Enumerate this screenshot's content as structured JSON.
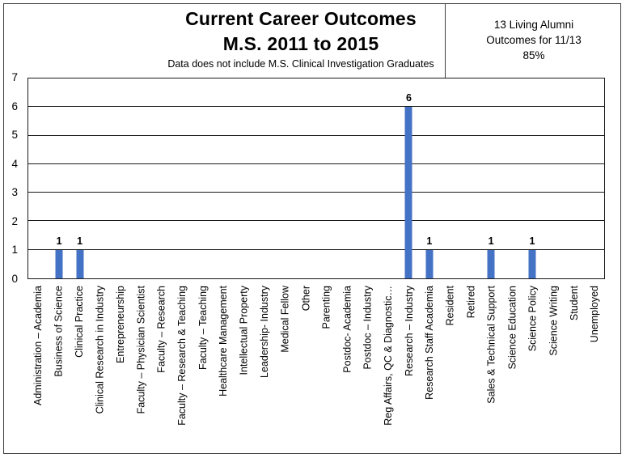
{
  "chart_data": {
    "type": "bar",
    "title_line1": "Current Career Outcomes",
    "title_line2": "M.S. 2011 to 2015",
    "subtitle": "Data does not include M.S. Clinical Investigation Graduates",
    "annotation": {
      "line1": "13 Living Alumni",
      "line2": "Outcomes for 11/13",
      "line3": "85%"
    },
    "categories": [
      "Administration – Academia",
      "Business of Science",
      "Clinical Practice",
      "Clinical Research in Industry",
      "Entrepreneurship",
      "Faculty – Physician Scientist",
      "Faculty – Research",
      "Faculty – Research & Teaching",
      "Faculty – Teaching",
      "Healthcare Management",
      "Intellectual Property",
      "Leadership- Industry",
      "Medical Fellow",
      "Other",
      "Parenting",
      "Postdoc- Academia",
      "Postdoc – Industry",
      "Reg Affairs, QC & Diagnostic…",
      "Research – Industry",
      "Research Staff Academia",
      "Resident",
      "Retired",
      "Sales & Technical Support",
      "Science Education",
      "Science Policy",
      "Science Writing",
      "Student",
      "Unemployed"
    ],
    "values": [
      0,
      1,
      1,
      0,
      0,
      0,
      0,
      0,
      0,
      0,
      0,
      0,
      0,
      0,
      0,
      0,
      0,
      0,
      6,
      1,
      0,
      0,
      1,
      0,
      1,
      0,
      0,
      0
    ],
    "xlabel": "",
    "ylabel": "",
    "ylim": [
      0,
      7
    ],
    "yticks": [
      0,
      1,
      2,
      3,
      4,
      5,
      6,
      7
    ],
    "grid": true,
    "legend": "none",
    "bar_color": "#4472C4",
    "data_label_values": [
      "1",
      "1",
      "6",
      "1",
      "1",
      "1"
    ]
  }
}
